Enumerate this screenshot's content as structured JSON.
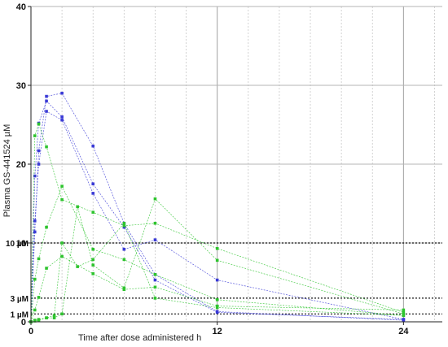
{
  "chart_data": {
    "type": "line",
    "xlabel": "Time after dose administered h",
    "ylabel": "Plasma GS-441524 µM",
    "xlim": [
      0,
      26.5
    ],
    "ylim": [
      0,
      40
    ],
    "x_ticks": [
      0,
      12,
      24
    ],
    "y_ticks": [
      0,
      10,
      20,
      30,
      40
    ],
    "grid": true,
    "reference_lines": [
      {
        "label": "10 µM",
        "value": 10
      },
      {
        "label": "3 µM",
        "value": 3
      },
      {
        "label": "1 µM",
        "value": 1
      }
    ],
    "series": [
      {
        "color": "#3a3ad6",
        "x": [
          0,
          0.25,
          0.5,
          1,
          2,
          4,
          6,
          8,
          12,
          24
        ],
        "y": [
          0,
          11.4,
          21.7,
          28.6,
          29,
          22.3,
          12.5,
          6,
          1.3,
          0.2
        ]
      },
      {
        "color": "#3a3ad6",
        "x": [
          0,
          0.25,
          0.5,
          1,
          2,
          4,
          6,
          8,
          12,
          24
        ],
        "y": [
          0,
          18.5,
          25.2,
          28,
          26,
          17.5,
          12,
          5.3,
          1.2,
          0.3
        ]
      },
      {
        "color": "#3a3ad6",
        "x": [
          0,
          0.25,
          0.5,
          1,
          2,
          4,
          6,
          8,
          12,
          24
        ],
        "y": [
          0,
          12.8,
          20,
          26.7,
          25.6,
          16.3,
          9.2,
          10.4,
          5.3,
          0.3
        ]
      },
      {
        "color": "#2ec42e",
        "x": [
          0,
          0.25,
          0.5,
          1,
          2,
          4,
          6,
          8,
          12,
          24
        ],
        "y": [
          0,
          23.6,
          25.1,
          22.2,
          15.5,
          13.9,
          12.2,
          12.5,
          9.3,
          1.2
        ]
      },
      {
        "color": "#2ec42e",
        "x": [
          0,
          0.25,
          0.5,
          1,
          2,
          4,
          6,
          8,
          12,
          24
        ],
        "y": [
          0,
          5.4,
          8,
          12,
          17.2,
          9.2,
          7.9,
          6,
          2.8,
          0.8
        ]
      },
      {
        "color": "#2ec42e",
        "x": [
          0,
          0.25,
          0.5,
          1,
          2,
          4,
          6,
          8,
          12,
          24
        ],
        "y": [
          0,
          1.5,
          3.1,
          6.8,
          8.3,
          6.1,
          4.1,
          4.4,
          2,
          1.5
        ]
      },
      {
        "color": "#2ec42e",
        "x": [
          0,
          0.25,
          0.5,
          1,
          1.5,
          2,
          3,
          4,
          6,
          8,
          12,
          24
        ],
        "y": [
          0,
          0.1,
          0.3,
          0.5,
          0.5,
          1,
          14.6,
          7.2,
          4.3,
          15.6,
          7.8,
          1
        ]
      },
      {
        "color": "#2ec42e",
        "x": [
          0,
          0.25,
          0.5,
          1,
          1.5,
          2,
          3,
          4,
          6,
          8,
          12,
          24
        ],
        "y": [
          0,
          0.2,
          0.2,
          0.5,
          0.8,
          10,
          7,
          7.9,
          12.5,
          3,
          1.8,
          0.8
        ]
      }
    ]
  }
}
